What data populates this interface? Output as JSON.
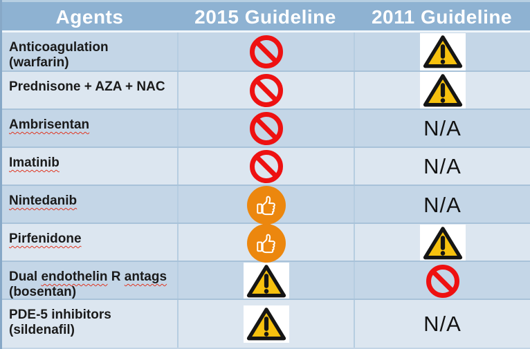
{
  "table": {
    "na_label": "N/A",
    "columns": [
      {
        "label": "Agents"
      },
      {
        "label": "2015 Guideline"
      },
      {
        "label": "2011 Guideline"
      }
    ],
    "rows": [
      {
        "agent": [
          {
            "text": "Anticoagulation (warfarin)",
            "misspelled": false
          }
        ],
        "g2015": "prohibited",
        "g2011": "warning"
      },
      {
        "agent": [
          {
            "text": "Prednisone + AZA + NAC",
            "misspelled": false
          }
        ],
        "g2015": "prohibited",
        "g2011": "warning"
      },
      {
        "agent": [
          {
            "text": "Ambrisentan",
            "misspelled": true
          }
        ],
        "g2015": "prohibited",
        "g2011": "na"
      },
      {
        "agent": [
          {
            "text": "Imatinib",
            "misspelled": true
          }
        ],
        "g2015": "prohibited",
        "g2011": "na"
      },
      {
        "agent": [
          {
            "text": "Nintedanib",
            "misspelled": true
          }
        ],
        "g2015": "thumbs-up",
        "g2011": "na"
      },
      {
        "agent": [
          {
            "text": "Pirfenidone",
            "misspelled": true
          }
        ],
        "g2015": "thumbs-up",
        "g2011": "warning"
      },
      {
        "agent": [
          {
            "text": "Dual ",
            "misspelled": false
          },
          {
            "text": "endothelin",
            "misspelled": true
          },
          {
            "text": " R ",
            "misspelled": false
          },
          {
            "text": "antags",
            "misspelled": true
          },
          {
            "text": " ",
            "misspelled": false
          },
          {
            "text": "(bosentan)",
            "misspelled": true
          }
        ],
        "g2015": "warning",
        "g2011": "prohibited"
      },
      {
        "agent": [
          {
            "text": "PDE-5 inhibitors (sildenafil)",
            "misspelled": false
          }
        ],
        "g2015": "warning",
        "g2011": "na"
      }
    ],
    "icons": {
      "prohibited": "no-sign-icon",
      "warning": "warning-triangle-icon",
      "thumbs-up": "thumbs-up-icon"
    },
    "colors": {
      "header_bg": "#8EB2D2",
      "row_dark": "#C4D6E7",
      "row_light": "#DCE6F0",
      "prohibited_red": "#EE1111",
      "warning_yellow": "#F7C10E",
      "thumb_orange": "#EC870E",
      "header_text": "#FFFFFF",
      "body_text": "#1A1A1A"
    }
  }
}
